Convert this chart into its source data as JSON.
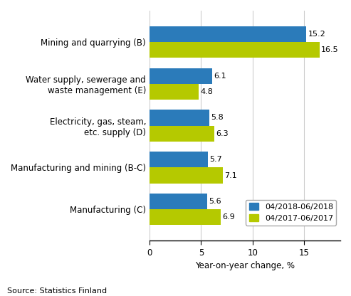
{
  "categories": [
    "Mining and quarrying (B)",
    "Water supply, sewerage and\nwaste management (E)",
    "Electricity, gas, steam,\netc. supply (D)",
    "Manufacturing and mining (B-C)",
    "Manufacturing (C)"
  ],
  "values_2018": [
    15.2,
    6.1,
    5.8,
    5.7,
    5.6
  ],
  "values_2017": [
    16.5,
    4.8,
    6.3,
    7.1,
    6.9
  ],
  "color_2018": "#2b7bba",
  "color_2017": "#b5c900",
  "xlabel": "Year-on-year change, %",
  "legend_2018": "04/2018-06/2018",
  "legend_2017": "04/2017-06/2017",
  "source": "Source: Statistics Finland",
  "xlim": [
    0,
    18.5
  ],
  "xticks": [
    0,
    5,
    10,
    15
  ],
  "bar_height": 0.38,
  "label_fontsize": 8,
  "tick_fontsize": 8.5,
  "source_fontsize": 8,
  "ylabel_fontsize": 8.5
}
